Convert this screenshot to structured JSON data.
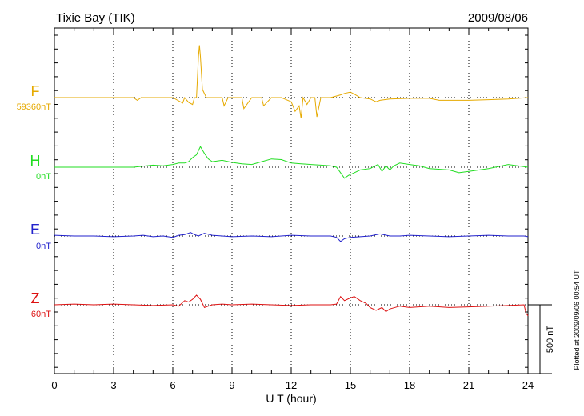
{
  "header": {
    "station": "Tixie Bay (TIK)",
    "date": "2009/08/06"
  },
  "footnote": "Plotted at 2009/09/06 00:54 UT",
  "chart_data": {
    "type": "line",
    "title": "Tixie Bay (TIK)",
    "date": "2009/08/06",
    "xlabel": "U T (hour)",
    "xlim": [
      0,
      24
    ],
    "xticks": [
      "0",
      "3",
      "6",
      "9",
      "12",
      "15",
      "18",
      "21",
      "24"
    ],
    "grid": "dotted vertical every 3 h, dotted horizontal baseline per channel",
    "scale_bar": {
      "value": 500,
      "label": "500 nT"
    },
    "series": [
      {
        "name": "F",
        "baseline": "59360nT",
        "color": "#e6aa00",
        "x": [
          0,
          1,
          2,
          3,
          4,
          4.2,
          4.4,
          5,
          6,
          6.5,
          6.6,
          6.8,
          7,
          7.1,
          7.2,
          7.3,
          7.35,
          7.4,
          7.5,
          7.7,
          8,
          8.5,
          8.6,
          8.8,
          9,
          9.5,
          9.6,
          10,
          10.5,
          10.6,
          11,
          11.5,
          12,
          12.2,
          12.4,
          12.5,
          12.6,
          12.8,
          13,
          13.2,
          13.3,
          13.5,
          14,
          14.5,
          14.7,
          15,
          15.2,
          15.5,
          16,
          16.3,
          16.5,
          17,
          18,
          19,
          19.5,
          20,
          21,
          22,
          23,
          23.5,
          24
        ],
        "y": [
          0,
          0,
          0,
          0,
          0,
          -20,
          0,
          0,
          0,
          -40,
          0,
          -35,
          -50,
          0,
          0,
          300,
          380,
          300,
          60,
          0,
          0,
          0,
          -60,
          0,
          0,
          0,
          -80,
          0,
          0,
          -60,
          0,
          0,
          -30,
          -100,
          -60,
          -150,
          0,
          -50,
          0,
          0,
          -140,
          0,
          0,
          20,
          30,
          40,
          25,
          0,
          -10,
          -30,
          -20,
          -10,
          -5,
          -5,
          -20,
          -20,
          -20,
          -15,
          -10,
          -5,
          0
        ]
      },
      {
        "name": "H",
        "baseline": "0nT",
        "color": "#22dd22",
        "x": [
          0,
          1,
          2,
          3,
          4,
          5,
          5.5,
          6,
          6.3,
          6.6,
          6.8,
          7,
          7.2,
          7.4,
          7.6,
          7.8,
          8,
          8.5,
          9,
          9.5,
          10,
          10.5,
          11,
          11.5,
          12,
          12.5,
          13,
          13.5,
          14,
          14.3,
          14.5,
          14.7,
          14.9,
          15.2,
          15.5,
          16,
          16.4,
          16.6,
          16.8,
          17,
          17.2,
          17.5,
          18,
          18.5,
          19,
          20,
          20.5,
          21,
          22,
          23,
          24
        ],
        "y": [
          0,
          0,
          0,
          0,
          0,
          15,
          10,
          20,
          30,
          30,
          40,
          70,
          90,
          150,
          100,
          60,
          40,
          50,
          35,
          25,
          20,
          40,
          60,
          55,
          30,
          25,
          20,
          15,
          10,
          0,
          -40,
          -80,
          -60,
          -40,
          -20,
          -10,
          20,
          -30,
          10,
          -20,
          10,
          30,
          20,
          10,
          -10,
          -20,
          -40,
          -30,
          -10,
          20,
          0
        ]
      },
      {
        "name": "E",
        "baseline": "0nT",
        "color": "#2222cc",
        "x": [
          0,
          1,
          2,
          3,
          4,
          4.5,
          5,
          5.5,
          6,
          6.3,
          6.6,
          6.9,
          7.1,
          7.3,
          7.6,
          8,
          8.5,
          9,
          10,
          11,
          12,
          13,
          14,
          14.3,
          14.5,
          14.7,
          15,
          15.5,
          16,
          16.5,
          17,
          17.5,
          18,
          19,
          20,
          21,
          22,
          23,
          23.8,
          24
        ],
        "y": [
          5,
          0,
          0,
          -5,
          0,
          5,
          -5,
          0,
          -10,
          5,
          10,
          25,
          10,
          0,
          20,
          5,
          0,
          -5,
          0,
          -5,
          5,
          0,
          0,
          -10,
          -40,
          -20,
          -10,
          -5,
          0,
          15,
          0,
          0,
          5,
          0,
          -5,
          0,
          5,
          0,
          0,
          -5
        ]
      },
      {
        "name": "Z",
        "baseline": "60nT",
        "color": "#dd1111",
        "x": [
          0,
          1,
          2,
          3,
          4,
          5,
          6,
          6.3,
          6.6,
          6.8,
          7,
          7.2,
          7.4,
          7.6,
          7.8,
          8,
          8.5,
          9,
          10,
          11,
          12,
          13,
          14,
          14.3,
          14.5,
          14.7,
          15,
          15.2,
          15.5,
          15.8,
          16,
          16.3,
          16.6,
          16.8,
          17,
          17.5,
          18,
          19,
          20,
          21,
          22,
          23,
          23.8,
          23.9,
          24
        ],
        "y": [
          0,
          5,
          0,
          5,
          0,
          -5,
          0,
          -10,
          30,
          20,
          40,
          70,
          40,
          -20,
          -10,
          0,
          5,
          0,
          5,
          0,
          -5,
          0,
          0,
          5,
          60,
          30,
          50,
          60,
          30,
          10,
          -20,
          -40,
          -20,
          -50,
          -30,
          -10,
          -20,
          -10,
          -20,
          -15,
          -10,
          -5,
          0,
          -60,
          -80
        ]
      }
    ]
  }
}
